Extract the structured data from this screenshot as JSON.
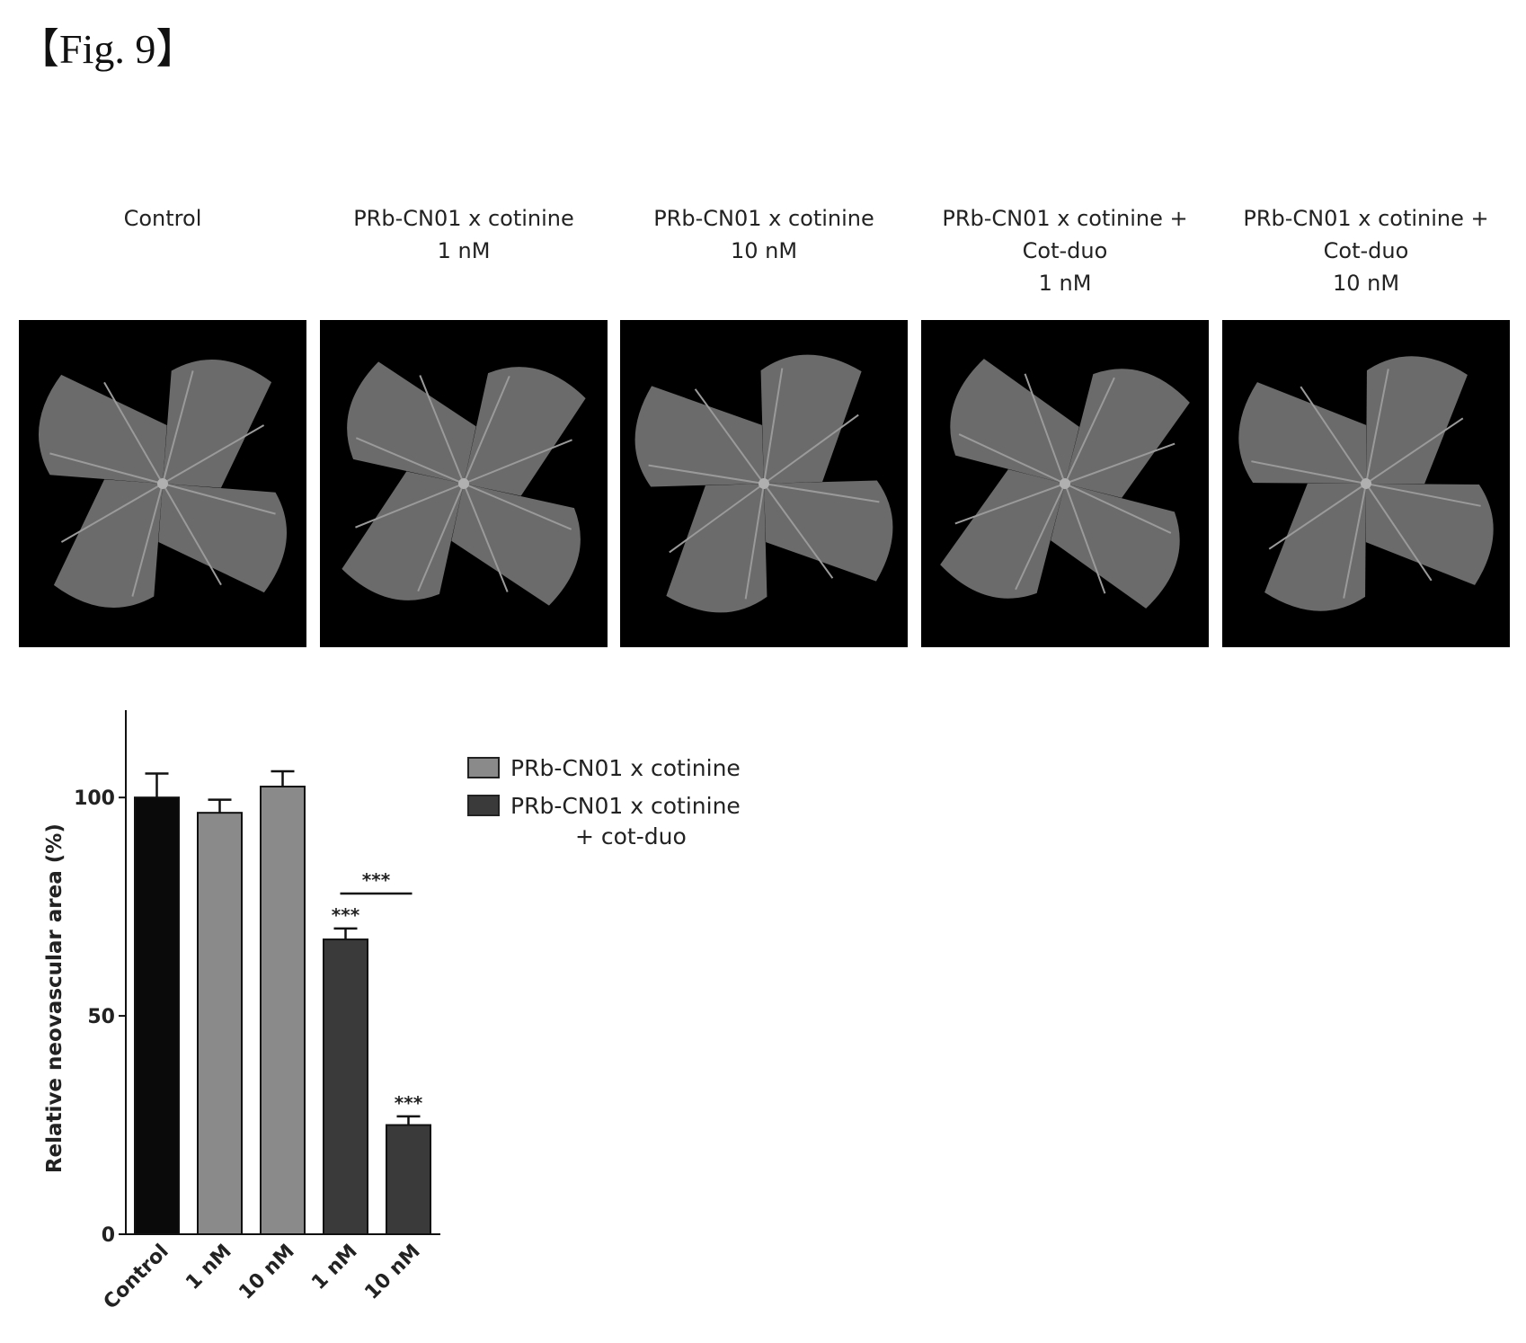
{
  "figure_label": "【Fig. 9】",
  "panels": [
    {
      "lines": [
        "Control"
      ]
    },
    {
      "lines": [
        "PRb-CN01 x cotinine",
        "1 nM"
      ]
    },
    {
      "lines": [
        "PRb-CN01 x cotinine",
        "10 nM"
      ]
    },
    {
      "lines": [
        "PRb-CN01 x cotinine +",
        "Cot-duo",
        "1 nM"
      ]
    },
    {
      "lines": [
        "PRb-CN01 x cotinine +",
        "Cot-duo",
        "10 nM"
      ]
    }
  ],
  "colors": {
    "control": "#0a0a0a",
    "cotinine": "#8a8a8a",
    "cot_duo": "#3a3a3a",
    "retina": "#6b6b6b"
  },
  "chart_data": {
    "type": "bar",
    "title": "",
    "xlabel": "",
    "ylabel": "Relative neovascular area (%)",
    "ylim": [
      0,
      120
    ],
    "yticks": [
      0,
      50,
      100
    ],
    "categories": [
      "Control",
      "1 nM",
      "10 nM",
      "1 nM",
      "10 nM"
    ],
    "values": [
      100,
      96.5,
      102.5,
      67.5,
      25
    ],
    "errors": [
      5.5,
      3,
      3.5,
      2.5,
      2
    ],
    "groups": [
      "control",
      "cotinine",
      "cotinine",
      "cot_duo",
      "cot_duo"
    ],
    "bar_annotations": [
      "",
      "",
      "",
      "***",
      "***"
    ],
    "comparison": {
      "from": 3,
      "to": 4,
      "label": "***"
    },
    "legend": {
      "placement": "right",
      "entries": [
        {
          "group": "cotinine",
          "lines": [
            "PRb-CN01 x cotinine"
          ]
        },
        {
          "group": "cot_duo",
          "lines": [
            "PRb-CN01 x cotinine",
            "+ cot-duo"
          ]
        }
      ]
    }
  }
}
